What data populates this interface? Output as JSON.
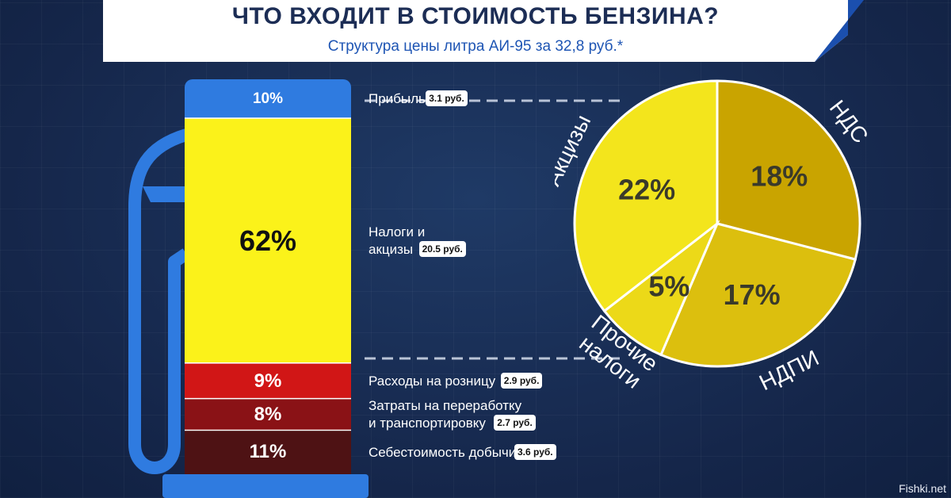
{
  "header": {
    "title": "ЧТО ВХОДИТ В СТОИМОСТЬ БЕНЗИНА?",
    "subtitle": "Структура цены литра АИ-95 за 32,8 руб.*"
  },
  "colors": {
    "profit": "#2f7be0",
    "taxes": "#fbf21a",
    "retail": "#d11616",
    "processing": "#8a1216",
    "extraction": "#4e1214",
    "pie_akcizy": "#f3e51c",
    "pie_nds": "#c9a400",
    "pie_ndpi": "#dcbf0e",
    "pie_other": "#ecd918"
  },
  "chart_data": [
    {
      "type": "bar",
      "title": "",
      "xlabel": "",
      "ylabel": "",
      "stacked": true,
      "categories": [
        "Прибыль",
        "Налоги и акцизы",
        "Расходы на розницу",
        "Затраты на переработку и транспортировку",
        "Себестоимость добычи"
      ],
      "series": [
        {
          "values": [
            10,
            62,
            9,
            8,
            11
          ],
          "labels": [
            "10%",
            "62%",
            "9%",
            "8%",
            "11%"
          ]
        }
      ],
      "prices": [
        "3.1 руб.",
        "20.5 руб.",
        "2.9 руб.",
        "2.7 руб.",
        "3.6 руб."
      ],
      "row_labels": [
        [
          "Прибыль"
        ],
        [
          "Налоги и",
          "акцизы"
        ],
        [
          "Расходы на розницу"
        ],
        [
          "Затраты на переработку",
          "и транспортировку"
        ],
        [
          "Себестоимость добычи"
        ]
      ]
    },
    {
      "type": "pie",
      "title": "",
      "categories": [
        "НДС",
        "НДПИ",
        "Прочие налоги",
        "Акцизы"
      ],
      "values": [
        18,
        17,
        5,
        22
      ],
      "labels": [
        "18%",
        "17%",
        "5%",
        "22%"
      ],
      "outer_labels": [
        "НДС",
        "НДПИ",
        "Прочие налоги",
        "Акцизы"
      ]
    }
  ],
  "watermark": "Fishki.net"
}
